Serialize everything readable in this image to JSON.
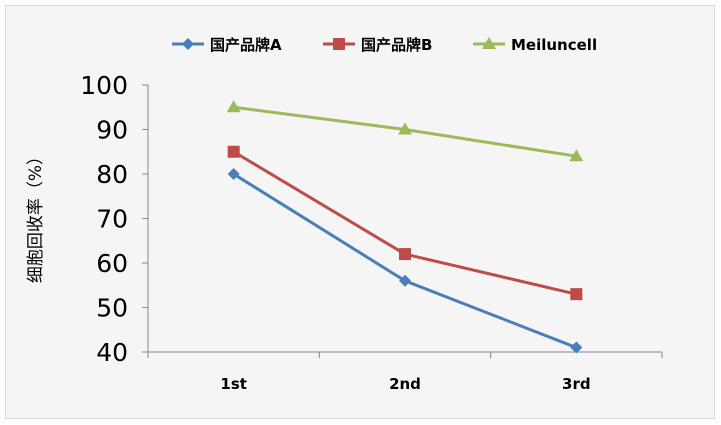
{
  "chart_data": {
    "type": "line",
    "title": "",
    "xlabel": "",
    "ylabel": "细胞回收率（%）",
    "categories": [
      "1st",
      "2nd",
      "3rd"
    ],
    "ylim": [
      40,
      100
    ],
    "yticks": [
      40,
      50,
      60,
      70,
      80,
      90,
      100
    ],
    "grid": false,
    "legend_position": "top",
    "series": [
      {
        "name": "国产品牌A",
        "values": [
          80,
          56,
          41
        ],
        "color": "#4a7ebb",
        "marker": "diamond"
      },
      {
        "name": "国产品牌B",
        "values": [
          85,
          62,
          53
        ],
        "color": "#be4b48",
        "marker": "square"
      },
      {
        "name": "Meiluncell",
        "values": [
          95,
          90,
          84
        ],
        "color": "#9bbb59",
        "marker": "triangle"
      }
    ]
  }
}
